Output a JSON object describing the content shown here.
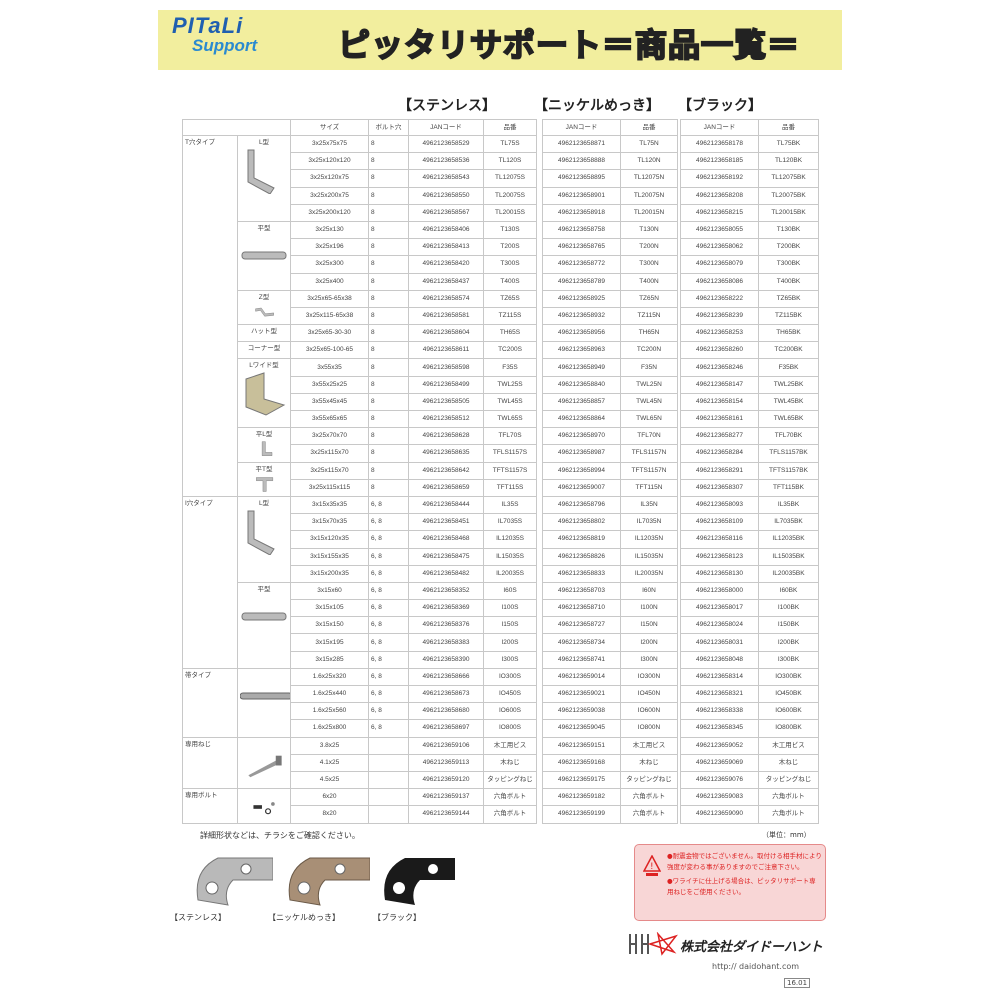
{
  "header": {
    "logo_line1": "PITaLi",
    "logo_line2": "Support",
    "title": "ピッタリサポート＝商品一覧＝",
    "accent": "#f2ee9e"
  },
  "sections": {
    "stainless": "【ステンレス】",
    "nickel": "【ニッケルめっき】",
    "black": "【ブラック】"
  },
  "columns": {
    "size": "サイズ",
    "bolt": "ボルト穴",
    "jan": "JANコード",
    "code": "品番"
  },
  "groups": [
    {
      "category": "T穴タイプ",
      "subgroups": [
        {
          "name": "L型",
          "icon": "l-bracket",
          "rows": [
            [
              "3x25x75x75",
              "8",
              "4962123658529",
              "TL75S",
              "4962123658871",
              "TL75N",
              "4962123658178",
              "TL75BK"
            ],
            [
              "3x25x120x120",
              "8",
              "4962123658536",
              "TL120S",
              "4962123658888",
              "TL120N",
              "4962123658185",
              "TL120BK"
            ],
            [
              "3x25x120x75",
              "8",
              "4962123658543",
              "TL12075S",
              "4962123658895",
              "TL12075N",
              "4962123658192",
              "TL12075BK"
            ],
            [
              "3x25x200x75",
              "8",
              "4962123658550",
              "TL20075S",
              "4962123658901",
              "TL20075N",
              "4962123658208",
              "TL20075BK"
            ],
            [
              "3x25x200x120",
              "8",
              "4962123658567",
              "TL20015S",
              "4962123658918",
              "TL20015N",
              "4962123658215",
              "TL20015BK"
            ]
          ]
        },
        {
          "name": "平型",
          "icon": "flat-bar",
          "rows": [
            [
              "3x25x130",
              "8",
              "4962123658406",
              "T130S",
              "4962123658758",
              "T130N",
              "4962123658055",
              "T130BK"
            ],
            [
              "3x25x196",
              "8",
              "4962123658413",
              "T200S",
              "4962123658765",
              "T200N",
              "4962123658062",
              "T200BK"
            ],
            [
              "3x25x300",
              "8",
              "4962123658420",
              "T300S",
              "4962123658772",
              "T300N",
              "4962123658079",
              "T300BK"
            ],
            [
              "3x25x400",
              "8",
              "4962123658437",
              "T400S",
              "4962123658789",
              "T400N",
              "4962123658086",
              "T400BK"
            ]
          ]
        },
        {
          "name": "Z型",
          "icon": "z-bracket",
          "rows": [
            [
              "3x25x65-65x38",
              "8",
              "4962123658574",
              "TZ65S",
              "4962123658925",
              "TZ65N",
              "4962123658222",
              "TZ65BK"
            ],
            [
              "3x25x115-65x38",
              "8",
              "4962123658581",
              "TZ115S",
              "4962123658932",
              "TZ115N",
              "4962123658239",
              "TZ115BK"
            ]
          ]
        },
        {
          "name": "ハット型",
          "icon": "",
          "rows": [
            [
              "3x25x65-30-30",
              "8",
              "4962123658604",
              "TH65S",
              "4962123658956",
              "TH65N",
              "4962123658253",
              "TH65BK"
            ]
          ]
        },
        {
          "name": "コーナー型",
          "icon": "",
          "rows": [
            [
              "3x25x65-100-65",
              "8",
              "4962123658611",
              "TC200S",
              "4962123658963",
              "TC200N",
              "4962123658260",
              "TC200BK"
            ]
          ]
        },
        {
          "name": "Lワイド型",
          "icon": "wide-bracket",
          "rows": [
            [
              "3x55x35",
              "8",
              "4962123658598",
              "F35S",
              "4962123658949",
              "F35N",
              "4962123658246",
              "F35BK"
            ],
            [
              "3x55x25x25",
              "8",
              "4962123658499",
              "TWL25S",
              "4962123658840",
              "TWL25N",
              "4962123658147",
              "TWL25BK"
            ],
            [
              "3x55x45x45",
              "8",
              "4962123658505",
              "TWL45S",
              "4962123658857",
              "TWL45N",
              "4962123658154",
              "TWL45BK"
            ],
            [
              "3x55x65x65",
              "8",
              "4962123658512",
              "TWL65S",
              "4962123658864",
              "TWL65N",
              "4962123658161",
              "TWL65BK"
            ]
          ]
        },
        {
          "name": "平L型",
          "icon": "flat-l",
          "rows": [
            [
              "3x25x70x70",
              "8",
              "4962123658628",
              "TFL70S",
              "4962123658970",
              "TFL70N",
              "4962123658277",
              "TFL70BK"
            ],
            [
              "3x25x115x70",
              "8",
              "4962123658635",
              "TFLS1157S",
              "4962123658987",
              "TFLS1157N",
              "4962123658284",
              "TFLS1157BK"
            ]
          ]
        },
        {
          "name": "平T型",
          "icon": "flat-t",
          "rows": [
            [
              "3x25x115x70",
              "8",
              "4962123658642",
              "TFTS1157S",
              "4962123658994",
              "TFTS1157N",
              "4962123658291",
              "TFTS1157BK"
            ],
            [
              "3x25x115x115",
              "8",
              "4962123658659",
              "TFT115S",
              "4962123659007",
              "TFT115N",
              "4962123658307",
              "TFT115BK"
            ]
          ]
        }
      ]
    },
    {
      "category": "I穴タイプ",
      "subgroups": [
        {
          "name": "L型",
          "icon": "l-bracket",
          "rows": [
            [
              "3x15x35x35",
              "6, 8",
              "4962123658444",
              "IL35S",
              "4962123658796",
              "IL35N",
              "4962123658093",
              "IL35BK"
            ],
            [
              "3x15x70x35",
              "6, 8",
              "4962123658451",
              "IL7035S",
              "4962123658802",
              "IL7035N",
              "4962123658109",
              "IL7035BK"
            ],
            [
              "3x15x120x35",
              "6, 8",
              "4962123658468",
              "IL12035S",
              "4962123658819",
              "IL12035N",
              "4962123658116",
              "IL12035BK"
            ],
            [
              "3x15x155x35",
              "6, 8",
              "4962123658475",
              "IL15035S",
              "4962123658826",
              "IL15035N",
              "4962123658123",
              "IL15035BK"
            ],
            [
              "3x15x200x35",
              "6, 8",
              "4962123658482",
              "IL20035S",
              "4962123658833",
              "IL20035N",
              "4962123658130",
              "IL20035BK"
            ]
          ]
        },
        {
          "name": "平型",
          "icon": "flat-bar",
          "rows": [
            [
              "3x15x60",
              "6, 8",
              "4962123658352",
              "I60S",
              "4962123658703",
              "I60N",
              "4962123658000",
              "I60BK"
            ],
            [
              "3x15x105",
              "6, 8",
              "4962123658369",
              "I100S",
              "4962123658710",
              "I100N",
              "4962123658017",
              "I100BK"
            ],
            [
              "3x15x150",
              "6, 8",
              "4962123658376",
              "I150S",
              "4962123658727",
              "I150N",
              "4962123658024",
              "I150BK"
            ],
            [
              "3x15x195",
              "6, 8",
              "4962123658383",
              "I200S",
              "4962123658734",
              "I200N",
              "4962123658031",
              "I200BK"
            ],
            [
              "3x15x285",
              "6, 8",
              "4962123658390",
              "I300S",
              "4962123658741",
              "I300N",
              "4962123658048",
              "I300BK"
            ]
          ]
        }
      ]
    },
    {
      "category": "帯タイプ",
      "subgroups": [
        {
          "name": "",
          "icon": "strap",
          "rows": [
            [
              "1.6x25x320",
              "6, 8",
              "4962123658666",
              "IO300S",
              "4962123659014",
              "IO300N",
              "4962123658314",
              "IO300BK"
            ],
            [
              "1.6x25x440",
              "6, 8",
              "4962123658673",
              "IO450S",
              "4962123659021",
              "IO450N",
              "4962123658321",
              "IO450BK"
            ],
            [
              "1.6x25x560",
              "6, 8",
              "4962123658680",
              "IO600S",
              "4962123659038",
              "IO600N",
              "4962123658338",
              "IO600BK"
            ],
            [
              "1.6x25x800",
              "6, 8",
              "4962123658697",
              "IO800S",
              "4962123659045",
              "IO800N",
              "4962123658345",
              "IO800BK"
            ]
          ]
        }
      ]
    },
    {
      "category": "専用ねじ",
      "subgroups": [
        {
          "name": "",
          "icon": "screw",
          "rows": [
            [
              "3.8x25",
              "",
              "4962123659106",
              "木工用ビス",
              "4962123659151",
              "木工用ビス",
              "4962123659052",
              "木工用ビス"
            ],
            [
              "4.1x25",
              "",
              "4962123659113",
              "木ねじ",
              "4962123659168",
              "木ねじ",
              "4962123659069",
              "木ねじ"
            ],
            [
              "4.5x25",
              "",
              "4962123659120",
              "タッピングねじ",
              "4962123659175",
              "タッピングねじ",
              "4962123659076",
              "タッピングねじ"
            ]
          ]
        }
      ]
    },
    {
      "category": "専用ボルト",
      "subgroups": [
        {
          "name": "",
          "icon": "bolt",
          "rows": [
            [
              "6x20",
              "",
              "4962123659137",
              "六角ボルト",
              "4962123659182",
              "六角ボルト",
              "4962123659083",
              "六角ボルト"
            ],
            [
              "8x20",
              "",
              "4962123659144",
              "六角ボルト",
              "4962123659199",
              "六角ボルト",
              "4962123659090",
              "六角ボルト"
            ]
          ]
        }
      ]
    }
  ],
  "footer": {
    "note": "詳細形状などは、チラシをご確認ください。",
    "unit": "（単位：mm）",
    "finish_labels": [
      "【ステンレス】",
      "【ニッケルめっき】",
      "【ブラック】"
    ],
    "warning": [
      "●耐震金物ではございません。取付ける相手材により強度が変わる事がありますのでご注意下さい。",
      "●ワライチに仕上げる場合は、ピッタリサポート専用ねじをご使用ください。"
    ],
    "warning_color": "#d22222",
    "company": "株式会社ダイドーハント",
    "url": "http:// daidohant.com",
    "version": "16.01"
  }
}
